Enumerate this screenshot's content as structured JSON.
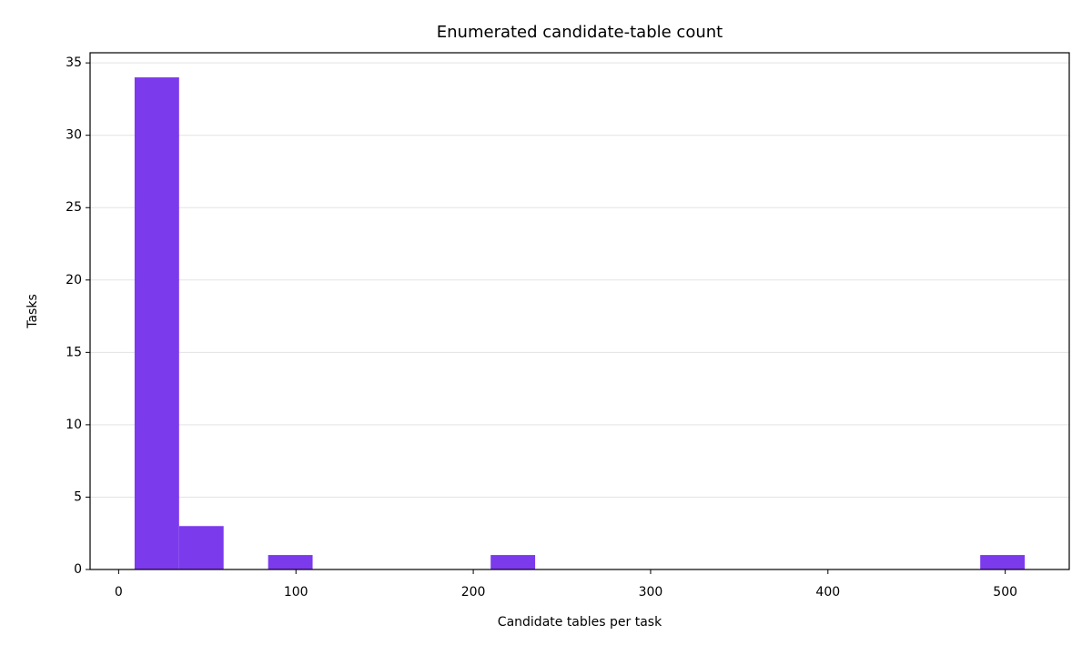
{
  "chart_data": {
    "type": "histogram",
    "title": "Enumerated candidate-table count",
    "x_label": "Candidate tables per task",
    "y_label": "Tasks",
    "bins": [
      9,
      34.1,
      59.2,
      84.3,
      109.4,
      134.5,
      159.6,
      184.7,
      209.8,
      234.9,
      260,
      285.1,
      310.2,
      335.3,
      360.4,
      385.5,
      410.6,
      435.7,
      460.8,
      485.9,
      511
    ],
    "values": [
      34,
      3,
      0,
      1,
      0,
      0,
      0,
      0,
      1,
      0,
      0,
      0,
      0,
      0,
      0,
      0,
      0,
      0,
      0,
      1
    ],
    "color": "#7c3aed",
    "xlim": [
      -16.1,
      536.1
    ],
    "xticks": [
      0,
      100,
      200,
      300,
      400,
      500
    ],
    "ylim": [
      0,
      35.7
    ],
    "yticks": [
      0,
      5,
      10,
      15,
      20,
      25,
      30,
      35
    ],
    "grid": true
  }
}
